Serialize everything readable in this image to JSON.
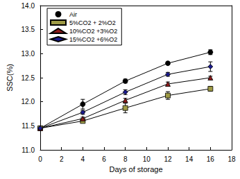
{
  "chart_data": {
    "type": "line",
    "x_label": "Days of storage",
    "y_label": "SSC(%)",
    "x": [
      0,
      4,
      8,
      12,
      16
    ],
    "series": [
      {
        "name": "Air",
        "color": "#000000",
        "marker": "circle",
        "values": [
          11.45,
          11.95,
          12.43,
          12.8,
          13.03
        ],
        "errors": [
          0.02,
          0.1,
          0.04,
          0.03,
          0.05
        ]
      },
      {
        "name": "5%CO2 + 2%O2",
        "color": "#9e9a45",
        "marker": "square",
        "values": [
          11.45,
          11.6,
          11.87,
          12.13,
          12.27
        ],
        "errors": [
          0.02,
          0.03,
          0.1,
          0.08,
          0.05
        ]
      },
      {
        "name": "10%CO2 +3%O2",
        "color": "#8b1a1a",
        "marker": "triangle",
        "values": [
          11.45,
          11.65,
          12.03,
          12.37,
          12.5
        ],
        "errors": [
          0.02,
          0.03,
          0.04,
          0.04,
          0.03
        ]
      },
      {
        "name": "15%CO2 +6%O2",
        "color": "#1a1a8b",
        "marker": "diamond",
        "values": [
          11.45,
          11.78,
          12.2,
          12.57,
          12.73
        ],
        "errors": [
          0.02,
          0.04,
          0.05,
          0.04,
          0.1
        ]
      }
    ],
    "xlim": [
      0,
      18
    ],
    "xticks": [
      0,
      2,
      4,
      6,
      8,
      10,
      12,
      14,
      16,
      18
    ],
    "ylim": [
      11.0,
      14.0
    ],
    "yticks": [
      {
        "value": 11.0,
        "label": "11.0"
      },
      {
        "value": 11.5,
        "label": "11.5"
      },
      {
        "value": 12.0,
        "label": "12.0"
      },
      {
        "value": 12.5,
        "label": "12.5"
      },
      {
        "value": 13.0,
        "label": "13.0"
      },
      {
        "value": 13.5,
        "label": "13.5"
      },
      {
        "value": 14.0,
        "label": "14.0"
      }
    ],
    "grid": false,
    "legend": "upper left"
  }
}
